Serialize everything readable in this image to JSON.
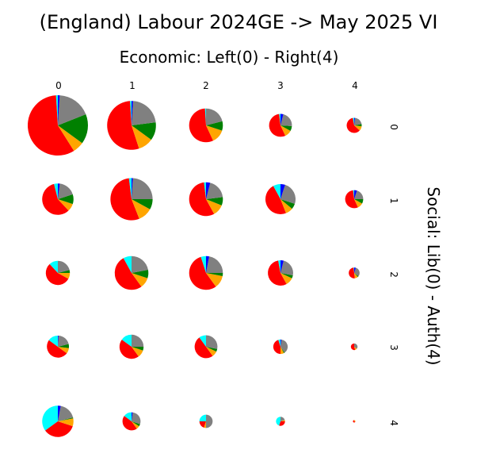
{
  "chart_data": {
    "type": "pie",
    "title": "(England) Labour 2024GE -> May 2025 VI",
    "subtitle": "Economic: Left(0) - Right(4)",
    "ylabel": "Social: Lib(0) - Auth(4)",
    "x_ticks": [
      "0",
      "1",
      "2",
      "3",
      "4"
    ],
    "y_ticks": [
      "0",
      "1",
      "2",
      "3",
      "4"
    ],
    "colors": {
      "lab": "#ff0000",
      "other": "#ffa500",
      "grn": "#008000",
      "gray": "#808080",
      "ld": "#0000ff",
      "ref": "#00ffff"
    },
    "grid": [
      [
        {
          "size": 1.0,
          "slices": [
            {
              "k": "ref",
              "v": 0.01
            },
            {
              "k": "lab",
              "v": 0.58
            },
            {
              "k": "other",
              "v": 0.06
            },
            {
              "k": "grn",
              "v": 0.16
            },
            {
              "k": "gray",
              "v": 0.18
            },
            {
              "k": "ld",
              "v": 0.01
            }
          ]
        },
        {
          "size": 0.81,
          "slices": [
            {
              "k": "ref",
              "v": 0.01
            },
            {
              "k": "lab",
              "v": 0.54
            },
            {
              "k": "other",
              "v": 0.1
            },
            {
              "k": "grn",
              "v": 0.12
            },
            {
              "k": "gray",
              "v": 0.22
            },
            {
              "k": "ld",
              "v": 0.01
            }
          ]
        },
        {
          "size": 0.56,
          "slices": [
            {
              "k": "ref",
              "v": 0.01
            },
            {
              "k": "lab",
              "v": 0.56
            },
            {
              "k": "other",
              "v": 0.13
            },
            {
              "k": "grn",
              "v": 0.09
            },
            {
              "k": "gray",
              "v": 0.21
            }
          ]
        },
        {
          "size": 0.38,
          "slices": [
            {
              "k": "ref",
              "v": 0.02
            },
            {
              "k": "lab",
              "v": 0.55
            },
            {
              "k": "other",
              "v": 0.1
            },
            {
              "k": "grn",
              "v": 0.07
            },
            {
              "k": "gray",
              "v": 0.22
            },
            {
              "k": "ld",
              "v": 0.04
            }
          ]
        },
        {
          "size": 0.25,
          "slices": [
            {
              "k": "ref",
              "v": 0.03
            },
            {
              "k": "lab",
              "v": 0.6
            },
            {
              "k": "other",
              "v": 0.1
            },
            {
              "k": "grn",
              "v": 0.05
            },
            {
              "k": "gray",
              "v": 0.2
            },
            {
              "k": "ld",
              "v": 0.02
            }
          ]
        }
      ],
      [
        {
          "size": 0.52,
          "slices": [
            {
              "k": "ref",
              "v": 0.04
            },
            {
              "k": "lab",
              "v": 0.58
            },
            {
              "k": "other",
              "v": 0.08
            },
            {
              "k": "grn",
              "v": 0.1
            },
            {
              "k": "gray",
              "v": 0.18
            },
            {
              "k": "ld",
              "v": 0.02
            }
          ]
        },
        {
          "size": 0.7,
          "slices": [
            {
              "k": "ref",
              "v": 0.02
            },
            {
              "k": "lab",
              "v": 0.54
            },
            {
              "k": "other",
              "v": 0.11
            },
            {
              "k": "grn",
              "v": 0.08
            },
            {
              "k": "gray",
              "v": 0.24
            },
            {
              "k": "ld",
              "v": 0.01
            }
          ]
        },
        {
          "size": 0.56,
          "slices": [
            {
              "k": "ref",
              "v": 0.02
            },
            {
              "k": "lab",
              "v": 0.56
            },
            {
              "k": "other",
              "v": 0.11
            },
            {
              "k": "grn",
              "v": 0.08
            },
            {
              "k": "gray",
              "v": 0.19
            },
            {
              "k": "ld",
              "v": 0.04
            }
          ]
        },
        {
          "size": 0.5,
          "slices": [
            {
              "k": "ref",
              "v": 0.08
            },
            {
              "k": "lab",
              "v": 0.48
            },
            {
              "k": "other",
              "v": 0.08
            },
            {
              "k": "grn",
              "v": 0.06
            },
            {
              "k": "gray",
              "v": 0.25
            },
            {
              "k": "ld",
              "v": 0.05
            }
          ]
        },
        {
          "size": 0.3,
          "slices": [
            {
              "k": "ref",
              "v": 0.02
            },
            {
              "k": "lab",
              "v": 0.55
            },
            {
              "k": "other",
              "v": 0.1
            },
            {
              "k": "grn",
              "v": 0.08
            },
            {
              "k": "gray",
              "v": 0.2
            },
            {
              "k": "ld",
              "v": 0.05
            }
          ]
        }
      ],
      [
        {
          "size": 0.4,
          "slices": [
            {
              "k": "ref",
              "v": 0.12
            },
            {
              "k": "lab",
              "v": 0.55
            },
            {
              "k": "other",
              "v": 0.08
            },
            {
              "k": "grn",
              "v": 0.04
            },
            {
              "k": "gray",
              "v": 0.21
            }
          ]
        },
        {
          "size": 0.56,
          "slices": [
            {
              "k": "ref",
              "v": 0.08
            },
            {
              "k": "lab",
              "v": 0.52
            },
            {
              "k": "other",
              "v": 0.1
            },
            {
              "k": "grn",
              "v": 0.08
            },
            {
              "k": "gray",
              "v": 0.22
            }
          ]
        },
        {
          "size": 0.56,
          "slices": [
            {
              "k": "ref",
              "v": 0.05
            },
            {
              "k": "lab",
              "v": 0.55
            },
            {
              "k": "other",
              "v": 0.12
            },
            {
              "k": "grn",
              "v": 0.03
            },
            {
              "k": "gray",
              "v": 0.22
            },
            {
              "k": "ld",
              "v": 0.03
            }
          ]
        },
        {
          "size": 0.42,
          "slices": [
            {
              "k": "ref",
              "v": 0.03
            },
            {
              "k": "lab",
              "v": 0.55
            },
            {
              "k": "other",
              "v": 0.1
            },
            {
              "k": "grn",
              "v": 0.04
            },
            {
              "k": "gray",
              "v": 0.24
            },
            {
              "k": "ld",
              "v": 0.04
            }
          ]
        },
        {
          "size": 0.18,
          "slices": [
            {
              "k": "ref",
              "v": 0.02
            },
            {
              "k": "lab",
              "v": 0.5
            },
            {
              "k": "other",
              "v": 0.1
            },
            {
              "k": "grn",
              "v": 0.03
            },
            {
              "k": "gray",
              "v": 0.3
            },
            {
              "k": "ld",
              "v": 0.05
            }
          ]
        }
      ],
      [
        {
          "size": 0.37,
          "slices": [
            {
              "k": "ref",
              "v": 0.15
            },
            {
              "k": "lab",
              "v": 0.5
            },
            {
              "k": "other",
              "v": 0.08
            },
            {
              "k": "grn",
              "v": 0.06
            },
            {
              "k": "gray",
              "v": 0.2
            },
            {
              "k": "ld",
              "v": 0.01
            }
          ]
        },
        {
          "size": 0.4,
          "slices": [
            {
              "k": "ref",
              "v": 0.15
            },
            {
              "k": "lab",
              "v": 0.45
            },
            {
              "k": "other",
              "v": 0.1
            },
            {
              "k": "grn",
              "v": 0.05
            },
            {
              "k": "gray",
              "v": 0.25
            }
          ]
        },
        {
          "size": 0.38,
          "slices": [
            {
              "k": "ref",
              "v": 0.1
            },
            {
              "k": "lab",
              "v": 0.5
            },
            {
              "k": "other",
              "v": 0.08
            },
            {
              "k": "grn",
              "v": 0.04
            },
            {
              "k": "gray",
              "v": 0.28
            }
          ]
        },
        {
          "size": 0.24,
          "slices": [
            {
              "k": "ref",
              "v": 0.05
            },
            {
              "k": "lab",
              "v": 0.45
            },
            {
              "k": "other",
              "v": 0.08
            },
            {
              "k": "grn",
              "v": 0.02
            },
            {
              "k": "gray",
              "v": 0.38
            },
            {
              "k": "ld",
              "v": 0.02
            }
          ]
        },
        {
          "size": 0.11,
          "slices": [
            {
              "k": "lab",
              "v": 0.55
            },
            {
              "k": "other",
              "v": 0.1
            },
            {
              "k": "gray",
              "v": 0.35
            }
          ]
        }
      ],
      [
        {
          "size": 0.52,
          "slices": [
            {
              "k": "ref",
              "v": 0.35
            },
            {
              "k": "lab",
              "v": 0.35
            },
            {
              "k": "other",
              "v": 0.08
            },
            {
              "k": "grn",
              "v": 0.01
            },
            {
              "k": "gray",
              "v": 0.18
            },
            {
              "k": "ld",
              "v": 0.03
            }
          ]
        },
        {
          "size": 0.3,
          "slices": [
            {
              "k": "ref",
              "v": 0.15
            },
            {
              "k": "lab",
              "v": 0.45
            },
            {
              "k": "other",
              "v": 0.06
            },
            {
              "k": "grn",
              "v": 0.04
            },
            {
              "k": "gray",
              "v": 0.28
            },
            {
              "k": "ld",
              "v": 0.02
            }
          ]
        },
        {
          "size": 0.22,
          "slices": [
            {
              "k": "ref",
              "v": 0.25
            },
            {
              "k": "lab",
              "v": 0.2
            },
            {
              "k": "other",
              "v": 0.05
            },
            {
              "k": "gray",
              "v": 0.5
            }
          ]
        },
        {
          "size": 0.15,
          "slices": [
            {
              "k": "ref",
              "v": 0.45
            },
            {
              "k": "lab",
              "v": 0.3
            },
            {
              "k": "other",
              "v": 0.05
            },
            {
              "k": "gray",
              "v": 0.2
            }
          ]
        },
        {
          "size": 0.04,
          "slices": [
            {
              "k": "lab",
              "v": 0.7
            },
            {
              "k": "other",
              "v": 0.3
            }
          ]
        }
      ]
    ]
  }
}
